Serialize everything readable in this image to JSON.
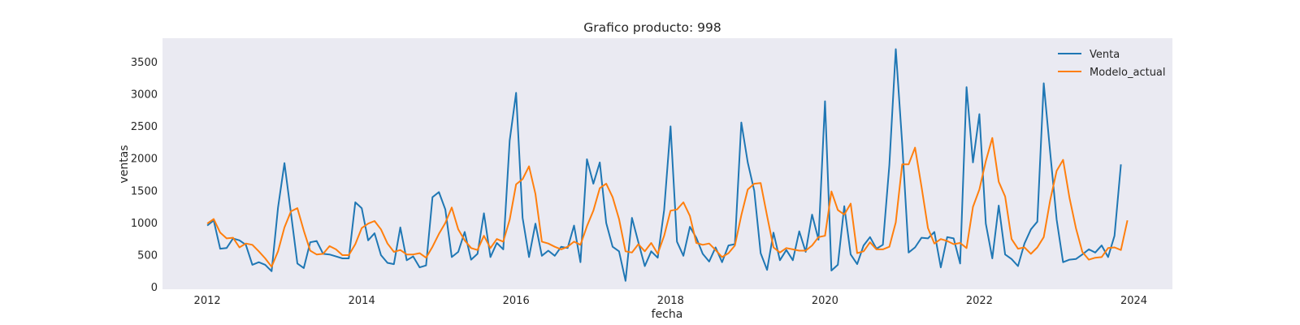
{
  "chart_data": {
    "type": "line",
    "title": "Grafico producto: 998",
    "xlabel": "fecha",
    "ylabel": "ventas",
    "xlim": [
      2011.42,
      2024.5
    ],
    "ylim": [
      -30,
      3870
    ],
    "x_ticks": [
      2012,
      2014,
      2016,
      2018,
      2020,
      2022,
      2024
    ],
    "y_ticks": [
      0,
      500,
      1000,
      1500,
      2000,
      2500,
      3000,
      3500
    ],
    "grid": false,
    "legend_position": "top-right",
    "x_start": 2012,
    "x_step_months": 1,
    "series": [
      {
        "name": "Venta",
        "color": "#1f77b4",
        "values": [
          960,
          1040,
          600,
          610,
          760,
          730,
          660,
          350,
          390,
          350,
          250,
          1240,
          1930,
          1150,
          370,
          300,
          700,
          720,
          520,
          510,
          480,
          450,
          450,
          1320,
          1230,
          730,
          840,
          500,
          380,
          360,
          930,
          420,
          480,
          310,
          340,
          1400,
          1480,
          1210,
          470,
          550,
          860,
          430,
          520,
          1150,
          470,
          690,
          590,
          2280,
          3020,
          1080,
          470,
          990,
          490,
          570,
          490,
          630,
          610,
          960,
          390,
          1990,
          1610,
          1940,
          1000,
          630,
          560,
          100,
          1080,
          700,
          330,
          560,
          460,
          1200,
          2500,
          710,
          490,
          940,
          770,
          520,
          400,
          620,
          390,
          650,
          670,
          2560,
          1940,
          1500,
          530,
          270,
          850,
          420,
          580,
          420,
          870,
          550,
          1130,
          740,
          2890,
          260,
          350,
          1260,
          510,
          360,
          650,
          780,
          600,
          660,
          1900,
          3700,
          2230,
          540,
          620,
          770,
          760,
          860,
          310,
          780,
          760,
          370,
          3110,
          1940,
          2690,
          990,
          450,
          1270,
          510,
          440,
          330,
          680,
          900,
          1020,
          3170,
          2100,
          1050,
          390,
          430,
          440,
          510,
          590,
          540,
          650,
          470,
          800,
          1910
        ]
      },
      {
        "name": "Modelo_actual",
        "color": "#ff7f0e",
        "values": [
          990,
          1060,
          850,
          760,
          770,
          620,
          680,
          660,
          560,
          450,
          320,
          560,
          930,
          1180,
          1230,
          880,
          570,
          510,
          520,
          640,
          590,
          500,
          500,
          670,
          920,
          990,
          1030,
          900,
          680,
          550,
          580,
          510,
          510,
          530,
          460,
          630,
          830,
          1000,
          1240,
          900,
          730,
          610,
          580,
          800,
          610,
          750,
          710,
          1050,
          1600,
          1680,
          1880,
          1450,
          710,
          680,
          630,
          590,
          630,
          710,
          660,
          950,
          1190,
          1540,
          1610,
          1400,
          1060,
          560,
          540,
          670,
          560,
          690,
          520,
          800,
          1190,
          1210,
          1320,
          1110,
          690,
          660,
          680,
          580,
          470,
          530,
          650,
          1120,
          1520,
          1610,
          1620,
          1110,
          620,
          540,
          610,
          590,
          570,
          570,
          650,
          780,
          800,
          1490,
          1200,
          1130,
          1300,
          530,
          560,
          700,
          590,
          590,
          630,
          1010,
          1910,
          1910,
          2170,
          1560,
          920,
          680,
          750,
          720,
          670,
          690,
          610,
          1250,
          1520,
          1960,
          2320,
          1640,
          1410,
          750,
          600,
          620,
          520,
          620,
          780,
          1350,
          1810,
          1980,
          1390,
          920,
          550,
          430,
          460,
          470,
          610,
          620,
          580,
          1040
        ]
      }
    ]
  }
}
